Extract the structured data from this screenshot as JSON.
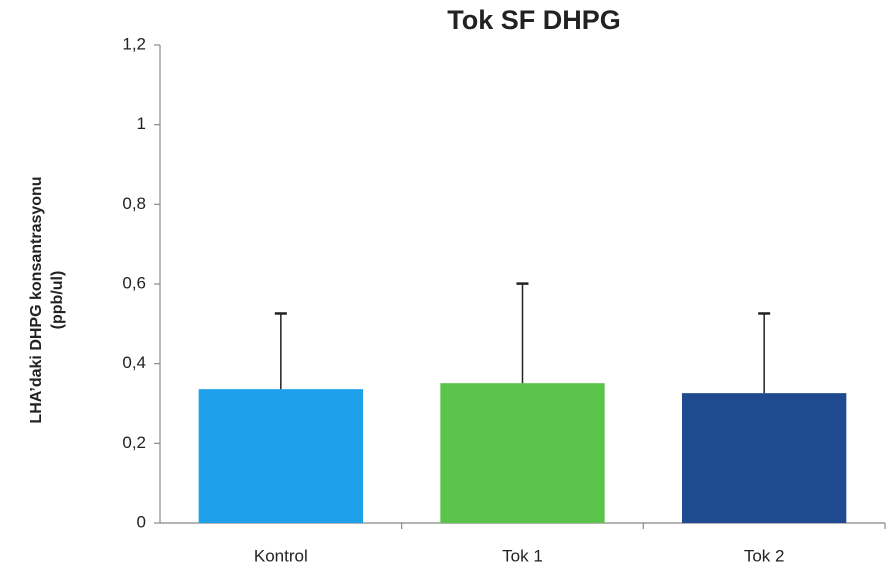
{
  "chart_data": {
    "type": "bar",
    "title": "Tok SF DHPG",
    "ylabel": [
      "LHA’daki DHPG konsantrasyonu",
      "(ppb/ul)"
    ],
    "categories": [
      "Kontrol",
      "Tok 1",
      "Tok 2"
    ],
    "values": [
      0.336,
      0.351,
      0.326
    ],
    "errors": [
      0.19,
      0.25,
      0.2
    ],
    "colors": [
      "#1ea1ea",
      "#5bc44a",
      "#1f4a8f"
    ],
    "ylim": [
      0,
      1.2
    ],
    "yticks": [
      0,
      {
        "value": 0.2,
        "label": "0,2"
      },
      {
        "value": 0.4,
        "label": "0,4"
      },
      {
        "value": 0.6,
        "label": "0,6"
      },
      {
        "value": 0.8,
        "label": "0,8"
      },
      1,
      {
        "value": 1.2,
        "label": "1,2"
      }
    ],
    "grid": false
  }
}
